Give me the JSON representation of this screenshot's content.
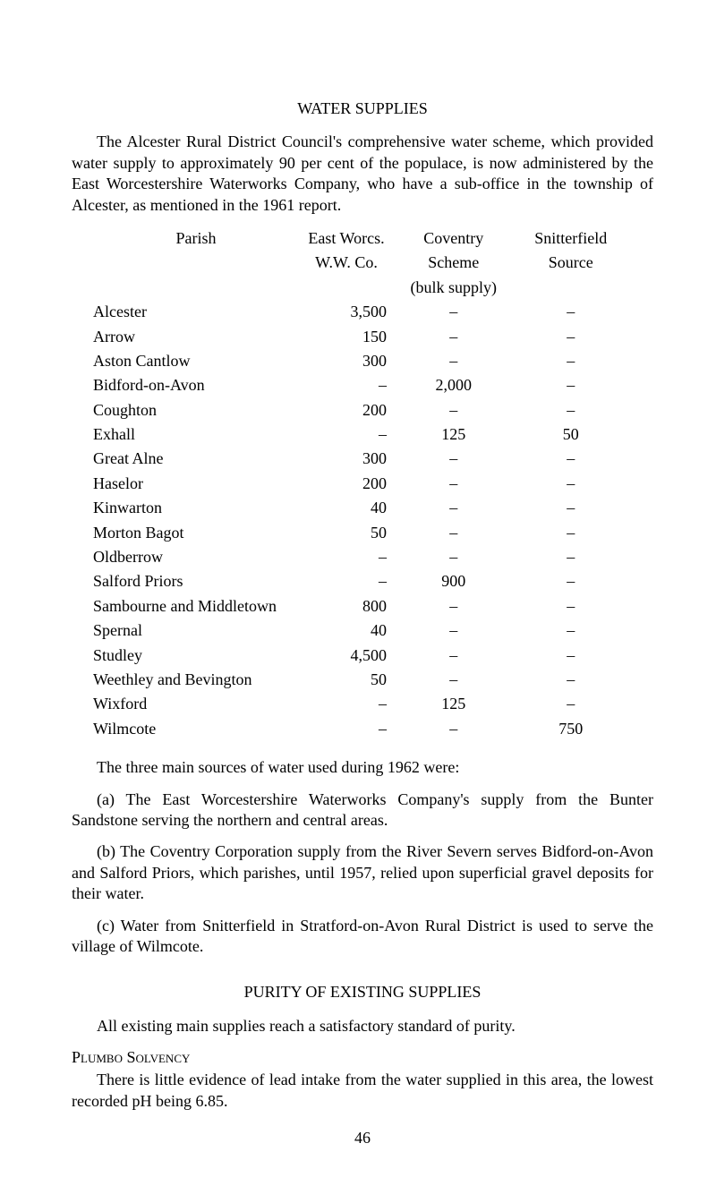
{
  "title": "WATER SUPPLIES",
  "intro": "The Alcester Rural District Council's comprehensive water scheme, which provided water supply to approximately 90 per cent of the populace, is now administered by the East Worcestershire Waterworks Company, who have a sub-office in the township of Alcester, as mentioned in the 1961 report.",
  "table": {
    "headers": {
      "parish": "Parish",
      "col1_l1": "East Worcs.",
      "col1_l2": "W.W. Co.",
      "col2_l1": "Coventry",
      "col2_l2": "Scheme",
      "col2_l3": "(bulk supply)",
      "col3_l1": "Snitterfield",
      "col3_l2": "Source"
    },
    "rows": [
      {
        "p": "Alcester",
        "a": "3,500",
        "b": "–",
        "c": "–"
      },
      {
        "p": "Arrow",
        "a": "150",
        "b": "–",
        "c": "–"
      },
      {
        "p": "Aston Cantlow",
        "a": "300",
        "b": "–",
        "c": "–"
      },
      {
        "p": "Bidford-on-Avon",
        "a": "–",
        "b": "2,000",
        "c": "–"
      },
      {
        "p": "Coughton",
        "a": "200",
        "b": "–",
        "c": "–"
      },
      {
        "p": "Exhall",
        "a": "–",
        "b": "125",
        "c": "50"
      },
      {
        "p": "Great Alne",
        "a": "300",
        "b": "–",
        "c": "–"
      },
      {
        "p": "Haselor",
        "a": "200",
        "b": "–",
        "c": "–"
      },
      {
        "p": "Kinwarton",
        "a": "40",
        "b": "–",
        "c": "–"
      },
      {
        "p": "Morton Bagot",
        "a": "50",
        "b": "–",
        "c": "–"
      },
      {
        "p": "Oldberrow",
        "a": "–",
        "b": "–",
        "c": "–"
      },
      {
        "p": "Salford Priors",
        "a": "–",
        "b": "900",
        "c": "–"
      },
      {
        "p": "Sambourne and Middletown",
        "a": "800",
        "b": "–",
        "c": "–"
      },
      {
        "p": "Spernal",
        "a": "40",
        "b": "–",
        "c": "–"
      },
      {
        "p": "Studley",
        "a": "4,500",
        "b": "–",
        "c": "–"
      },
      {
        "p": "Weethley and Bevington",
        "a": "50",
        "b": "–",
        "c": "–"
      },
      {
        "p": "Wixford",
        "a": "–",
        "b": "125",
        "c": "–"
      },
      {
        "p": "Wilmcote",
        "a": "–",
        "b": "–",
        "c": "750"
      }
    ]
  },
  "sources_intro": "The three main sources of water used during 1962 were:",
  "source_a": "(a) The East Worcestershire Waterworks Company's supply from the Bunter Sandstone serving the northern and central areas.",
  "source_b": "(b) The Coventry Corporation supply from the River Severn serves Bidford-on-Avon and Salford Priors, which parishes, until 1957, relied upon superficial gravel deposits for their water.",
  "source_c": "(c) Water from Snitterfield in Stratford-on-Avon Rural District is used to serve the village of Wilmcote.",
  "purity_title": "PURITY OF EXISTING SUPPLIES",
  "purity_para": "All existing main supplies reach a satisfactory standard of purity.",
  "plumbo_head": "Plumbo Solvency",
  "plumbo_para": "There is little evidence of lead intake from the water supplied in this area, the lowest recorded pH being 6.85.",
  "page_number": "46"
}
